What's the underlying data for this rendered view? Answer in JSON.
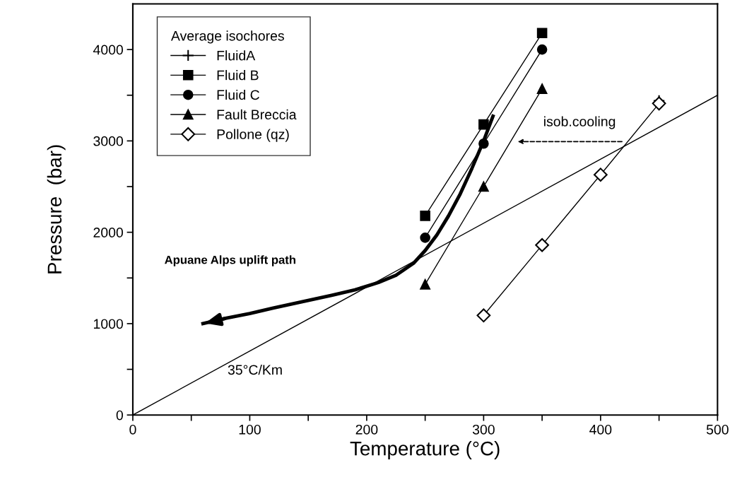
{
  "chart_data": {
    "type": "line",
    "xlabel": "Temperature (°C)",
    "ylabel": "Pressure  (bar)",
    "legend_title": "Average isochores",
    "xlim": [
      0,
      500
    ],
    "ylim": [
      0,
      4500
    ],
    "xticks": [
      0,
      {
        "value": 50,
        "label": null
      },
      100,
      {
        "value": 150,
        "label": null
      },
      200,
      {
        "value": 250,
        "label": null
      },
      300,
      {
        "value": 350,
        "label": null
      },
      400,
      {
        "value": 450,
        "label": null
      },
      500
    ],
    "yticks": [
      0,
      {
        "value": 500,
        "label": null
      },
      1000,
      {
        "value": 1500,
        "label": null
      },
      2000,
      {
        "value": 2500,
        "label": null
      },
      3000,
      {
        "value": 3500,
        "label": null
      },
      4000
    ],
    "legend": "top left",
    "grid": false,
    "series": [
      {
        "name": "FluidA",
        "color": "#000000",
        "marker": "cross",
        "x": [
          450
        ],
        "values": [
          3440
        ]
      },
      {
        "name": "Fluid B",
        "color": "#000000",
        "marker": "square",
        "x": [
          250,
          300,
          350
        ],
        "values": [
          2180,
          3180,
          4180
        ]
      },
      {
        "name": "Fluid C",
        "color": "#000000",
        "marker": "circle",
        "x": [
          250,
          300,
          350
        ],
        "values": [
          1940,
          2970,
          4000
        ]
      },
      {
        "name": "Fault Breccia",
        "color": "#000000",
        "marker": "triangle",
        "x": [
          250,
          300,
          350
        ],
        "values": [
          1430,
          2500,
          3570
        ]
      },
      {
        "name": "Pollone (qz)",
        "color": "#000000",
        "marker": "diamond",
        "x": [
          300,
          350,
          400,
          450
        ],
        "values": [
          1090,
          1860,
          2630,
          3410
        ]
      },
      {
        "color": "#000000",
        "marker": "none",
        "x": [
          0,
          500
        ],
        "values": [
          0,
          3500
        ]
      },
      {
        "color": "#000000",
        "marker": "none",
        "x": [
          308,
          300,
          290,
          280,
          270,
          260,
          250,
          240,
          225,
          210,
          190,
          170,
          145,
          120,
          100,
          80,
          60
        ],
        "values": [
          3270,
          3000,
          2700,
          2420,
          2180,
          1970,
          1800,
          1660,
          1530,
          1450,
          1370,
          1310,
          1240,
          1170,
          1110,
          1060,
          1000
        ]
      }
    ],
    "annotations": [
      "Apuane Alps uplift path",
      "35°C/Km",
      "isob.cooling"
    ]
  }
}
